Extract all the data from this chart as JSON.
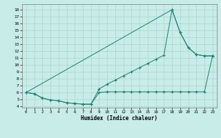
{
  "xlabel": "Humidex (Indice chaleur)",
  "bg_color": "#c8ece8",
  "grid_color": "#a8d4cf",
  "line_color": "#1a7a6e",
  "xlim": [
    -0.5,
    23.5
  ],
  "ylim": [
    3.8,
    18.8
  ],
  "yticks": [
    4,
    5,
    6,
    7,
    8,
    9,
    10,
    11,
    12,
    13,
    14,
    15,
    16,
    17,
    18
  ],
  "xticks": [
    0,
    1,
    2,
    3,
    4,
    5,
    6,
    7,
    8,
    9,
    10,
    11,
    12,
    13,
    14,
    15,
    16,
    17,
    18,
    19,
    20,
    21,
    22,
    23
  ],
  "curve1_x": [
    0,
    1,
    2,
    3,
    4,
    5,
    6,
    7,
    8,
    9,
    10,
    11,
    12,
    13,
    14,
    15,
    16,
    17,
    18,
    19,
    20,
    21,
    22,
    23
  ],
  "curve1_y": [
    6.0,
    5.8,
    5.2,
    4.9,
    4.8,
    4.5,
    4.4,
    4.3,
    4.3,
    6.0,
    6.1,
    6.1,
    6.1,
    6.1,
    6.1,
    6.1,
    6.1,
    6.1,
    6.1,
    6.1,
    6.1,
    6.1,
    6.1,
    11.3
  ],
  "curve2_x": [
    0,
    1,
    2,
    3,
    4,
    5,
    6,
    7,
    8,
    9,
    10,
    11,
    12,
    13,
    14,
    15,
    16,
    17,
    18,
    19,
    20,
    21,
    22,
    23
  ],
  "curve2_y": [
    6.0,
    5.8,
    5.2,
    4.9,
    4.8,
    4.5,
    4.4,
    4.3,
    4.3,
    6.5,
    7.2,
    7.8,
    8.4,
    9.0,
    9.6,
    10.2,
    10.8,
    11.4,
    18.0,
    14.7,
    12.5,
    11.5,
    11.3,
    11.3
  ],
  "curve3_x": [
    0,
    18,
    19,
    20,
    21,
    22,
    23
  ],
  "curve3_y": [
    6.0,
    18.0,
    14.7,
    12.5,
    11.5,
    11.3,
    11.3
  ]
}
